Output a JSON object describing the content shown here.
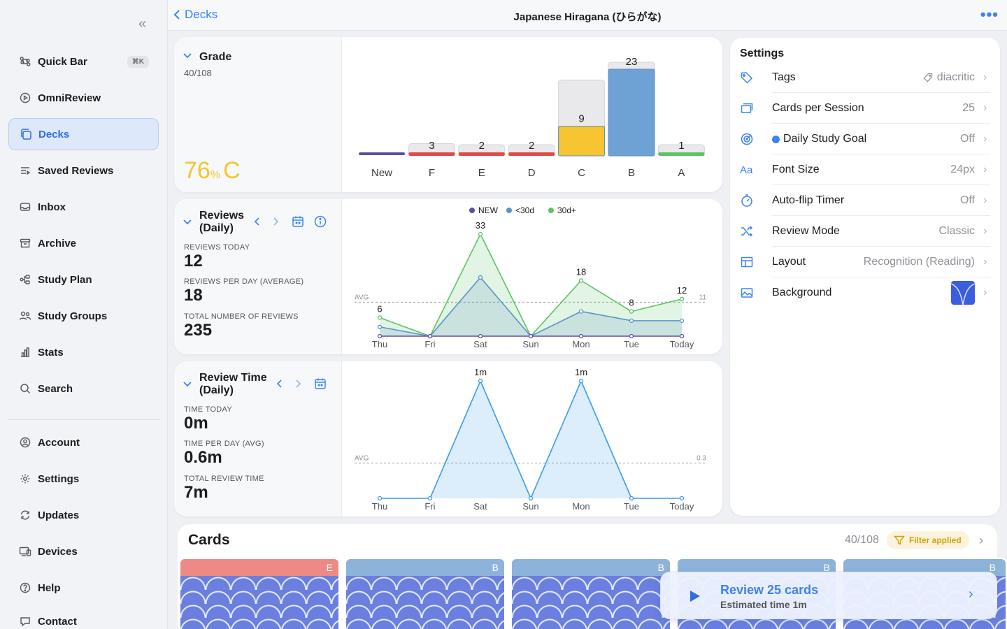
{
  "sidebar": {
    "items": [
      {
        "label": "Quick Bar",
        "icon": "command-icon",
        "shortcut": "⌘K"
      },
      {
        "label": "OmniReview",
        "icon": "play-circle-icon"
      },
      {
        "label": "Decks",
        "icon": "decks-icon",
        "active": true
      },
      {
        "label": "Saved Reviews",
        "icon": "saved-list-icon"
      },
      {
        "label": "Inbox",
        "icon": "inbox-icon"
      },
      {
        "label": "Archive",
        "icon": "archive-icon"
      },
      {
        "label": "Study Plan",
        "icon": "study-plan-icon"
      },
      {
        "label": "Study Groups",
        "icon": "people-icon"
      },
      {
        "label": "Stats",
        "icon": "bar-chart-icon"
      },
      {
        "label": "Search",
        "icon": "search-icon"
      },
      {
        "label": "Account",
        "icon": "account-icon"
      },
      {
        "label": "Settings",
        "icon": "gear-icon"
      },
      {
        "label": "Updates",
        "icon": "refresh-icon"
      },
      {
        "label": "Devices",
        "icon": "devices-icon"
      },
      {
        "label": "Help",
        "icon": "help-icon"
      },
      {
        "label": "Contact",
        "icon": "contact-icon"
      }
    ]
  },
  "header": {
    "back_label": "Decks",
    "title": "Japanese Hiragana (ひらがな)"
  },
  "grade": {
    "title": "Grade",
    "count": "40/108",
    "score": "76",
    "percent": "%",
    "letter": "C",
    "chart_data": {
      "type": "bar",
      "categories": [
        "New",
        "F",
        "E",
        "D",
        "C",
        "B",
        "A"
      ],
      "values": [
        0,
        3,
        2,
        2,
        9,
        23,
        1
      ],
      "labels": [
        "",
        "3",
        "2",
        "2",
        "9",
        "23",
        "1"
      ],
      "colors": [
        "#5b4fa0",
        "#e04a46",
        "#e04a46",
        "#e04a46",
        "#f6c531",
        "#6ea1d4",
        "#5cc462"
      ]
    }
  },
  "reviews": {
    "title1": "Reviews",
    "title2": "(Daily)",
    "today_label": "REVIEWS TODAY",
    "today_value": "12",
    "avg_label": "REVIEWS PER DAY (AVERAGE)",
    "avg_value": "18",
    "total_label": "TOTAL NUMBER OF REVIEWS",
    "total_value": "235",
    "chart_data": {
      "type": "area",
      "x": [
        "Thu",
        "Fri",
        "Sat",
        "Sun",
        "Mon",
        "Tue",
        "Today"
      ],
      "ylim": [
        0,
        33
      ],
      "series": [
        {
          "name": "NEW",
          "color": "#5b4fa0",
          "values": [
            0,
            0,
            0,
            0,
            0,
            0,
            0
          ]
        },
        {
          "name": "<30d",
          "color": "#5b92c9",
          "values": [
            3,
            0,
            19,
            0,
            8,
            5,
            5
          ]
        },
        {
          "name": "30d+",
          "color": "#5cc462",
          "values": [
            6,
            0,
            33,
            0,
            18,
            8,
            12
          ]
        }
      ],
      "point_labels": [
        "6",
        "",
        "33",
        "",
        "18",
        "8",
        "12"
      ],
      "avg": 11,
      "avg_label": "AVG",
      "avg_value_label": "11"
    }
  },
  "time": {
    "title1": "Review Time",
    "title2": "(Daily)",
    "today_label": "TIME TODAY",
    "today_value": "0m",
    "avg_label": "TIME PER DAY (AVG)",
    "avg_value": "0.6m",
    "total_label": "TOTAL REVIEW TIME",
    "total_value": "7m",
    "chart_data": {
      "type": "area",
      "x": [
        "Thu",
        "Fri",
        "Sat",
        "Sun",
        "Mon",
        "Tue",
        "Today"
      ],
      "ylim": [
        0,
        1
      ],
      "series": [
        {
          "color": "#3b9be9",
          "values": [
            0,
            0,
            1,
            0,
            1,
            0,
            0
          ]
        }
      ],
      "point_labels": [
        "",
        "",
        "1m",
        "",
        "1m",
        "",
        ""
      ],
      "avg": 0.3,
      "avg_label": "AVG",
      "avg_value_label": "0.3"
    }
  },
  "settings": {
    "title": "Settings",
    "rows": [
      {
        "label": "Tags",
        "value": "diacritic",
        "icon": "tag-icon"
      },
      {
        "label": "Cards per Session",
        "value": "25",
        "icon": "cards-icon"
      },
      {
        "label": "Daily Study Goal",
        "value": "Off",
        "icon": "target-icon"
      },
      {
        "label": "Font Size",
        "value": "24px",
        "icon": "font-size-icon"
      },
      {
        "label": "Auto-flip Timer",
        "value": "Off",
        "icon": "timer-icon"
      },
      {
        "label": "Review Mode",
        "value": "Classic",
        "icon": "shuffle-icon"
      },
      {
        "label": "Layout",
        "value": "Recognition (Reading)",
        "icon": "layout-icon"
      },
      {
        "label": "Background",
        "value": "",
        "icon": "image-icon"
      }
    ]
  },
  "cards": {
    "title": "Cards",
    "count": "40/108",
    "filter_label": "Filter applied",
    "items": [
      {
        "grade": "E",
        "color": "#ee8a86"
      },
      {
        "grade": "B",
        "color": "#8eb3da"
      },
      {
        "grade": "B",
        "color": "#8eb3da"
      },
      {
        "grade": "B",
        "color": "#8eb3da"
      },
      {
        "grade": "B",
        "color": "#8eb3da"
      }
    ]
  },
  "review_cta": {
    "title": "Review 25 cards",
    "subtitle": "Estimated time 1m"
  }
}
